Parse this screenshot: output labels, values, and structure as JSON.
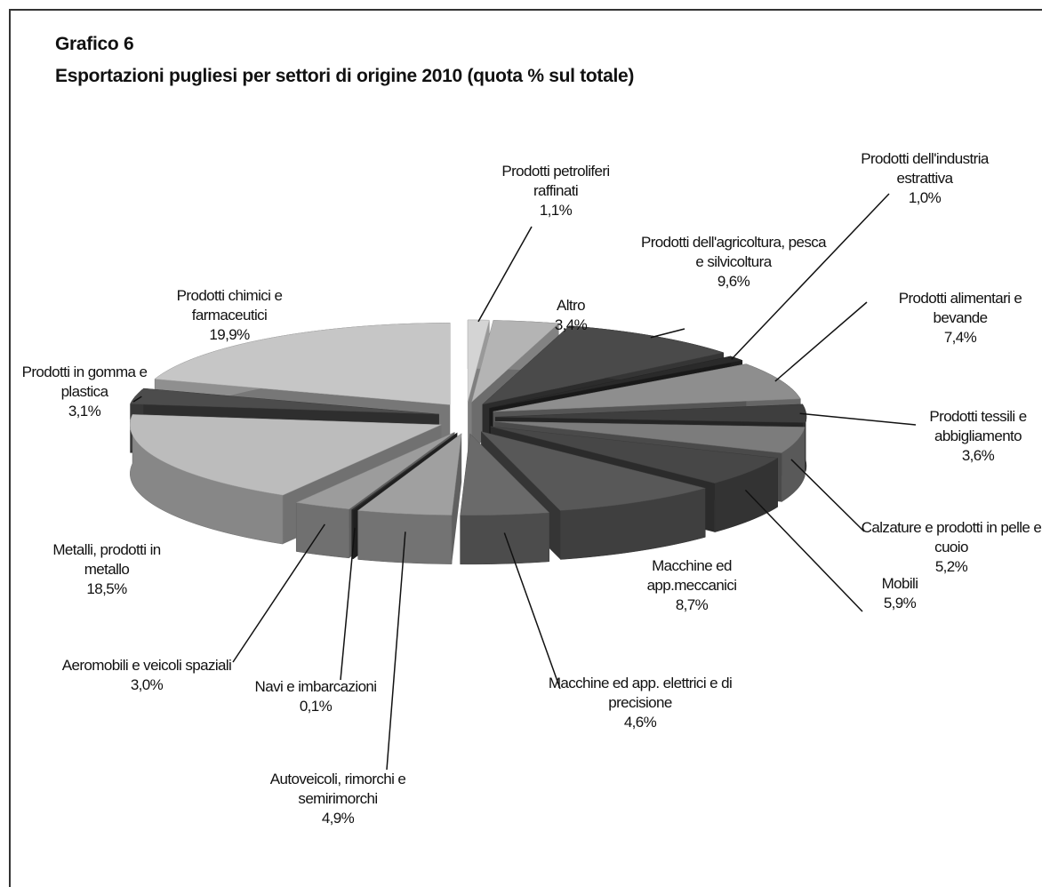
{
  "chart_data": {
    "type": "pie3d",
    "title": "Grafico 6",
    "subtitle": "Esportazioni pugliesi per settori di origine 2010 (quota % sul totale)",
    "categories": [
      "Prodotti petroliferi raffinati",
      "Altro",
      "Prodotti dell'agricoltura, pesca e silvicoltura",
      "Prodotti dell'industria estrattiva",
      "Prodotti alimentari e bevande",
      "Prodotti tessili e abbigliamento",
      "Calzature e prodotti in pelle e cuoio",
      "Mobili",
      "Macchine ed app.meccanici",
      "Macchine ed app. elettrici e di precisione",
      "Autoveicoli, rimorchi e semirimorchi",
      "Navi e imbarcazioni",
      "Aeromobili e veicoli spaziali",
      "Metalli, prodotti in metallo",
      "Prodotti in gomma e plastica",
      "Prodotti chimici e farmaceutici"
    ],
    "values": [
      1.1,
      3.4,
      9.6,
      1.0,
      7.4,
      3.6,
      5.2,
      5.9,
      8.7,
      4.6,
      4.9,
      0.1,
      3.0,
      18.5,
      3.1,
      19.9
    ],
    "value_labels": [
      "1,1%",
      "3,4%",
      "9,6%",
      "1,0%",
      "7,4%",
      "3,6%",
      "5,2%",
      "5,9%",
      "8,7%",
      "4,6%",
      "4,9%",
      "0,1%",
      "3,0%",
      "18,5%",
      "3,1%",
      "19,9%"
    ],
    "colors": [
      "#d4d4d4",
      "#b4b4b4",
      "#4a4a4a",
      "#2a2a2a",
      "#8e8e8e",
      "#3e3e3e",
      "#7c7c7c",
      "#474747",
      "#585858",
      "#6a6a6a",
      "#a0a0a0",
      "#333333",
      "#9c9c9c",
      "#bcbcbc",
      "#4c4c4c",
      "#c6c6c6"
    ]
  }
}
